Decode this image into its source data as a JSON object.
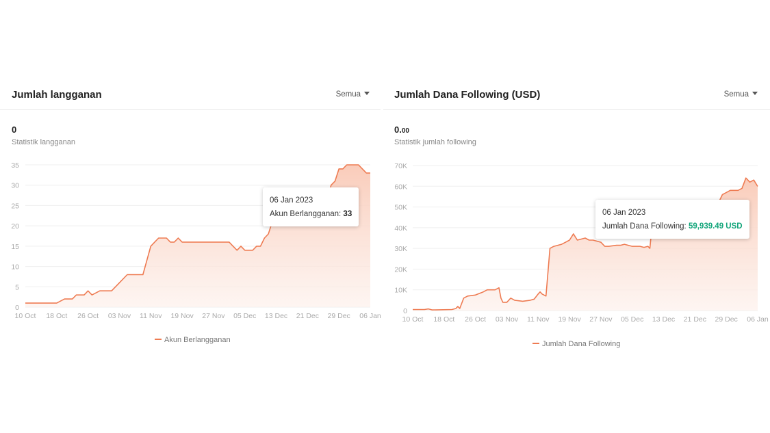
{
  "colors": {
    "line": "#ee7b52",
    "fill_top": "#f9c9b6",
    "fill_bottom": "#fdf1ec",
    "grid": "#efefef",
    "tooltip_value_green": "#12a57a"
  },
  "panels": [
    {
      "title": "Jumlah langganan",
      "filter_label": "Semua",
      "big_value": "0",
      "big_value_decimal": "",
      "subtitle": "Statistik langganan",
      "legend_label": "Akun Berlangganan",
      "tooltip": {
        "date": "06 Jan 2023",
        "label": "Akun Berlangganan:",
        "value": "33"
      }
    },
    {
      "title": "Jumlah Dana Following (USD)",
      "filter_label": "Semua",
      "big_value": "0.",
      "big_value_decimal": "00",
      "subtitle": "Statistik jumlah following",
      "legend_label": "Jumlah Dana Following",
      "tooltip": {
        "date": "06 Jan 2023",
        "label": "Jumlah Dana Following:",
        "value": "59,939.49 USD"
      }
    }
  ],
  "chart_data": [
    {
      "type": "area",
      "ylim": [
        0,
        35
      ],
      "y_ticks": [
        0,
        5,
        10,
        15,
        20,
        25,
        30,
        35
      ],
      "y_tick_labels": [
        "0",
        "5",
        "10",
        "15",
        "20",
        "25",
        "30",
        "35"
      ],
      "x_range": [
        0,
        88
      ],
      "x_ticks": [
        0,
        8,
        16,
        24,
        32,
        40,
        48,
        56,
        64,
        72,
        80,
        88
      ],
      "x_tick_labels": [
        "10 Oct",
        "18 Oct",
        "26 Oct",
        "03 Nov",
        "11 Nov",
        "19 Nov",
        "27 Nov",
        "05 Dec",
        "13 Dec",
        "21 Dec",
        "29 Dec",
        "06 Jan"
      ],
      "grid": "horizontal",
      "legend": "bottom-center",
      "series": [
        {
          "name": "Akun Berlangganan",
          "x": [
            0,
            8,
            9,
            10,
            11,
            12,
            13,
            14,
            15,
            15.5,
            16,
            17,
            19,
            20,
            22,
            24,
            26,
            27,
            28,
            29,
            30,
            32,
            33,
            34,
            35,
            35.5,
            36,
            37,
            38,
            39,
            40,
            41,
            43,
            44,
            46,
            48,
            50,
            51,
            52,
            53,
            54,
            55,
            56,
            57,
            58,
            59,
            60,
            61,
            62,
            63,
            64,
            65,
            66,
            67,
            68,
            69,
            70,
            71,
            72,
            73,
            74,
            75,
            76,
            77,
            78,
            79,
            80,
            81,
            82,
            83,
            84,
            85,
            86,
            87,
            88
          ],
          "y": [
            1,
            1,
            1.5,
            2,
            2,
            2,
            3,
            3,
            3,
            3.5,
            4,
            3,
            4,
            4,
            4,
            6,
            8,
            8,
            8,
            8,
            8,
            15,
            16,
            17,
            17,
            17,
            17,
            16,
            16,
            17,
            16,
            16,
            16,
            16,
            16,
            16,
            16,
            16,
            16,
            15,
            14,
            15,
            14,
            14,
            14,
            15,
            15,
            17,
            18,
            21,
            21,
            21,
            21,
            21,
            21,
            21,
            21,
            21,
            21,
            21,
            21,
            21,
            22,
            26,
            30,
            31,
            34,
            34,
            35,
            35,
            35,
            35,
            34,
            33,
            33
          ]
        }
      ]
    },
    {
      "type": "area",
      "ylim": [
        0,
        70000
      ],
      "y_ticks": [
        0,
        10000,
        20000,
        30000,
        40000,
        50000,
        60000,
        70000
      ],
      "y_tick_labels": [
        "0",
        "10K",
        "20K",
        "30K",
        "40K",
        "50K",
        "60K",
        "70K"
      ],
      "x_range": [
        0,
        88
      ],
      "x_ticks": [
        0,
        8,
        16,
        24,
        32,
        40,
        48,
        56,
        64,
        72,
        80,
        88
      ],
      "x_tick_labels": [
        "10 Oct",
        "18 Oct",
        "26 Oct",
        "03 Nov",
        "11 Nov",
        "19 Nov",
        "27 Nov",
        "05 Dec",
        "13 Dec",
        "21 Dec",
        "29 Dec",
        "06 Jan"
      ],
      "grid": "horizontal",
      "legend": "bottom-center",
      "series": [
        {
          "name": "Jumlah Dana Following",
          "x": [
            0,
            3,
            4,
            5,
            10,
            11,
            11.5,
            12,
            13,
            14,
            16,
            18,
            19,
            20,
            21,
            22,
            22.5,
            23,
            24,
            25,
            26,
            28,
            30,
            31,
            32,
            32.5,
            33,
            34,
            35,
            36,
            38,
            39,
            40,
            41,
            42,
            44,
            45,
            46,
            48,
            49,
            50,
            52,
            53,
            54,
            56,
            58,
            59,
            60,
            60.5,
            61,
            62,
            64,
            66,
            70,
            74,
            76,
            78,
            79,
            80,
            81,
            82,
            83,
            84,
            85,
            86,
            87,
            88
          ],
          "y": [
            500,
            500,
            800,
            300,
            500,
            1000,
            2000,
            1000,
            6000,
            7000,
            7500,
            9000,
            10000,
            10000,
            10000,
            11000,
            6000,
            4000,
            4000,
            6000,
            5000,
            4500,
            5000,
            5500,
            8000,
            9000,
            8000,
            7000,
            30000,
            31000,
            32000,
            33000,
            34000,
            37000,
            34000,
            35000,
            34000,
            34000,
            33000,
            31000,
            31000,
            31500,
            31500,
            32000,
            31000,
            31000,
            30500,
            31000,
            30000,
            40000,
            47000,
            46000,
            45000,
            46000,
            48000,
            50000,
            52000,
            56000,
            57000,
            58000,
            58000,
            58000,
            59000,
            64000,
            62000,
            63000,
            59939
          ]
        }
      ]
    }
  ]
}
